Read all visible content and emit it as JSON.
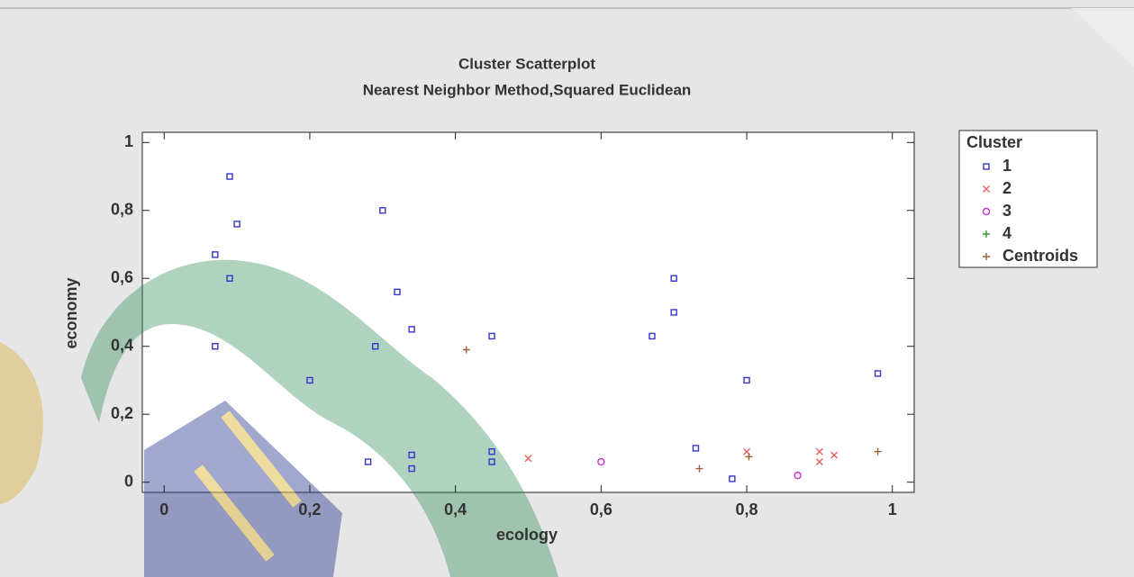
{
  "chart_data": {
    "type": "scatter",
    "title": "Cluster Scatterplot",
    "subtitle": "Nearest Neighbor Method,Squared Euclidean",
    "x_label": "ecology",
    "y_label": "economy",
    "legend_title": "Cluster",
    "legend_position": "right",
    "xlim": [
      -0.03,
      1.03
    ],
    "ylim": [
      -0.03,
      1.03
    ],
    "xticks": [
      0,
      {
        "value": 0.2,
        "label": "0,2"
      },
      {
        "value": 0.4,
        "label": "0,4"
      },
      {
        "value": 0.6,
        "label": "0,6"
      },
      {
        "value": 0.8,
        "label": "0,8"
      },
      1
    ],
    "yticks": [
      0,
      {
        "value": 0.2,
        "label": "0,2"
      },
      {
        "value": 0.4,
        "label": "0,4"
      },
      {
        "value": 0.6,
        "label": "0,6"
      },
      {
        "value": 0.8,
        "label": "0,8"
      },
      1
    ],
    "series": [
      {
        "name": "1",
        "color": "#3535c8",
        "marker": "square",
        "x": [
          0.07,
          0.09,
          0.1,
          0.09,
          0.07,
          0.3,
          0.32,
          0.34,
          0.29,
          0.2,
          0.45,
          0.28,
          0.34,
          0.34,
          0.45,
          0.45,
          0.7,
          0.7,
          0.67,
          0.8,
          0.98,
          0.73,
          0.78
        ],
        "values": [
          0.67,
          0.9,
          0.76,
          0.6,
          0.4,
          0.8,
          0.56,
          0.45,
          0.4,
          0.3,
          0.43,
          0.06,
          0.08,
          0.04,
          0.09,
          0.06,
          0.6,
          0.5,
          0.43,
          0.3,
          0.32,
          0.1,
          0.01
        ]
      },
      {
        "name": "2",
        "color": "#e06060",
        "marker": "x",
        "x": [
          0.5,
          0.8,
          0.9,
          0.9,
          0.92
        ],
        "values": [
          0.07,
          0.09,
          0.09,
          0.06,
          0.08
        ]
      },
      {
        "name": "3",
        "color": "#d030d0",
        "marker": "circle",
        "x": [
          0.6,
          0.87
        ],
        "values": [
          0.06,
          0.02
        ]
      },
      {
        "name": "4",
        "color": "#30a030",
        "marker": "plus",
        "x": [],
        "values": []
      },
      {
        "name": "Centroids",
        "color": "#a0603a",
        "marker": "plus",
        "x": [
          0.415,
          0.735,
          0.803,
          0.98
        ],
        "values": [
          0.39,
          0.04,
          0.075,
          0.09
        ]
      }
    ]
  }
}
